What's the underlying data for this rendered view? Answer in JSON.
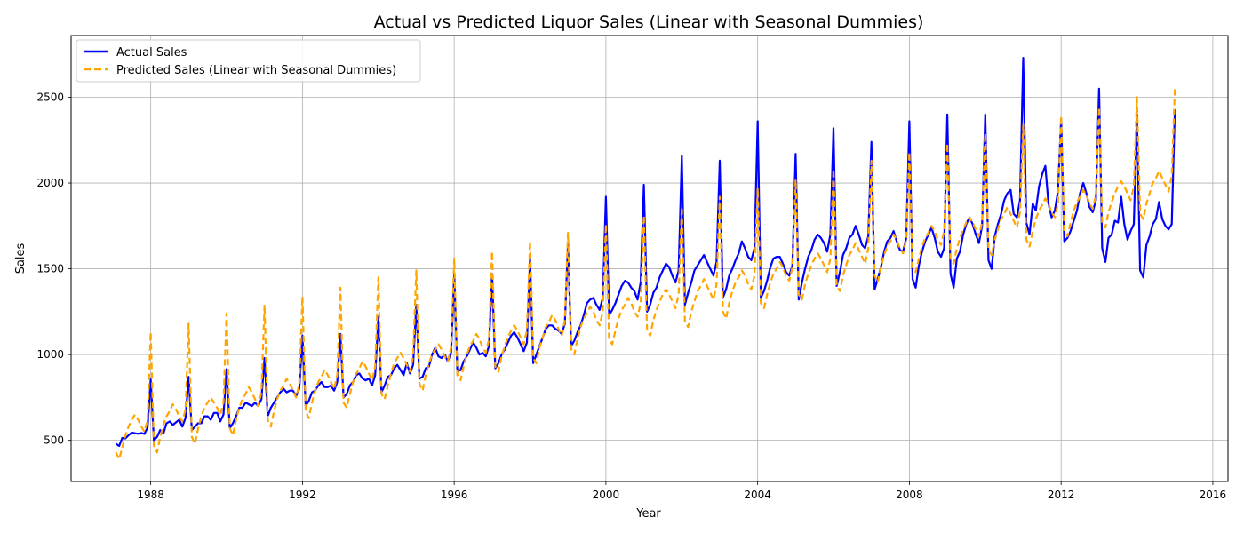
{
  "chart_data": {
    "type": "line",
    "title": "Actual vs Predicted Liquor Sales (Linear with Seasonal Dummies)",
    "xlabel": "Year",
    "ylabel": "Sales",
    "xlim": [
      1985.9,
      2016.4
    ],
    "ylim": [
      260,
      2860
    ],
    "xticks": [
      1988,
      1992,
      1996,
      2000,
      2004,
      2008,
      2012,
      2016
    ],
    "yticks": [
      500,
      1000,
      1500,
      2000,
      2500
    ],
    "grid": true,
    "legend_position": "top-left",
    "series": [
      {
        "name": "Actual Sales",
        "color": "#0000ff",
        "style": "solid",
        "annual": [
          {
            "year": 1987,
            "values": [
              480,
              467,
              514,
              511,
              530,
              545,
              541,
              538,
              543,
              537,
              575,
              855
            ]
          },
          {
            "year": 1988,
            "values": [
              500,
              520,
              560,
              540,
              600,
              610,
              590,
              605,
              620,
              580,
              630,
              870
            ]
          },
          {
            "year": 1989,
            "values": [
              560,
              580,
              600,
              600,
              640,
              640,
              620,
              660,
              660,
              610,
              650,
              915
            ]
          },
          {
            "year": 1990,
            "values": [
              570,
              600,
              640,
              690,
              690,
              720,
              710,
              700,
              720,
              700,
              740,
              980
            ]
          },
          {
            "year": 1991,
            "values": [
              640,
              690,
              720,
              750,
              780,
              800,
              780,
              790,
              790,
              760,
              800,
              1110
            ]
          },
          {
            "year": 1992,
            "values": [
              700,
              730,
              780,
              790,
              820,
              840,
              810,
              810,
              820,
              790,
              840,
              1120
            ]
          },
          {
            "year": 1993,
            "values": [
              750,
              770,
              820,
              840,
              880,
              890,
              860,
              850,
              860,
              820,
              880,
              1220
            ]
          },
          {
            "year": 1994,
            "values": [
              780,
              820,
              870,
              880,
              920,
              940,
              910,
              880,
              950,
              890,
              940,
              1290
            ]
          },
          {
            "year": 1995,
            "values": [
              860,
              870,
              920,
              930,
              1000,
              1040,
              990,
              980,
              1000,
              960,
              1010,
              1470
            ]
          },
          {
            "year": 1996,
            "values": [
              900,
              910,
              960,
              990,
              1030,
              1070,
              1040,
              1000,
              1010,
              990,
              1050,
              1470
            ]
          },
          {
            "year": 1997,
            "values": [
              920,
              950,
              1000,
              1030,
              1070,
              1110,
              1130,
              1100,
              1060,
              1020,
              1070,
              1560
            ]
          },
          {
            "year": 1998,
            "values": [
              950,
              1000,
              1050,
              1100,
              1150,
              1170,
              1170,
              1150,
              1140,
              1120,
              1180,
              1650
            ]
          },
          {
            "year": 1999,
            "values": [
              1050,
              1080,
              1130,
              1170,
              1230,
              1300,
              1320,
              1330,
              1290,
              1260,
              1330,
              1920
            ]
          },
          {
            "year": 2000,
            "values": [
              1230,
              1260,
              1300,
              1350,
              1400,
              1430,
              1420,
              1390,
              1370,
              1320,
              1420,
              1990
            ]
          },
          {
            "year": 2001,
            "values": [
              1250,
              1290,
              1360,
              1390,
              1450,
              1490,
              1530,
              1510,
              1460,
              1420,
              1490,
              2160
            ]
          },
          {
            "year": 2002,
            "values": [
              1290,
              1360,
              1420,
              1490,
              1520,
              1550,
              1580,
              1540,
              1500,
              1460,
              1540,
              2130
            ]
          },
          {
            "year": 2003,
            "values": [
              1330,
              1380,
              1460,
              1500,
              1550,
              1590,
              1660,
              1620,
              1570,
              1550,
              1620,
              2360
            ]
          },
          {
            "year": 2004,
            "values": [
              1330,
              1370,
              1430,
              1510,
              1560,
              1570,
              1570,
              1530,
              1480,
              1460,
              1520,
              2170
            ]
          },
          {
            "year": 2005,
            "values": [
              1320,
              1420,
              1500,
              1570,
              1610,
              1670,
              1700,
              1680,
              1650,
              1600,
              1700,
              2320
            ]
          },
          {
            "year": 2006,
            "values": [
              1400,
              1480,
              1580,
              1620,
              1680,
              1700,
              1750,
              1700,
              1640,
              1620,
              1690,
              2240
            ]
          },
          {
            "year": 2007,
            "values": [
              1380,
              1440,
              1510,
              1600,
              1660,
              1680,
              1720,
              1660,
              1610,
              1600,
              1680,
              2360
            ]
          },
          {
            "year": 2008,
            "values": [
              1440,
              1390,
              1520,
              1600,
              1660,
              1700,
              1740,
              1680,
              1600,
              1570,
              1620,
              2400
            ]
          },
          {
            "year": 2009,
            "values": [
              1470,
              1390,
              1560,
              1600,
              1700,
              1760,
              1800,
              1760,
              1700,
              1650,
              1750,
              2400
            ]
          },
          {
            "year": 2010,
            "values": [
              1550,
              1500,
              1690,
              1760,
              1820,
              1900,
              1940,
              1960,
              1820,
              1800,
              1900,
              2730
            ]
          },
          {
            "year": 2011,
            "values": [
              1770,
              1700,
              1880,
              1840,
              1980,
              2050,
              2100,
              1880,
              1800,
              1840,
              1950,
              2370
            ]
          },
          {
            "year": 2012,
            "values": [
              1660,
              1680,
              1720,
              1780,
              1840,
              1940,
              2000,
              1940,
              1860,
              1830,
              1900,
              2550
            ]
          },
          {
            "year": 2013,
            "values": [
              1620,
              1540,
              1680,
              1700,
              1780,
              1770,
              1920,
              1760,
              1670,
              1720,
              1760,
              2400
            ]
          },
          {
            "year": 2014,
            "values": [
              1490,
              1450,
              1640,
              1690,
              1760,
              1790,
              1890,
              1790,
              1750,
              1730,
              1760,
              2430
            ]
          }
        ]
      },
      {
        "name": "Predicted Sales (Linear with Seasonal Dummies)",
        "color": "#ffa500",
        "style": "dashed",
        "annual": [
          {
            "year": 1987,
            "values": [
              430,
              390,
              460,
              530,
              580,
              620,
              650,
              620,
              580,
              550,
              620,
              1130
            ]
          },
          {
            "year": 1988,
            "values": [
              470,
              430,
              520,
              590,
              640,
              670,
              710,
              680,
              640,
              610,
              680,
              1180
            ]
          },
          {
            "year": 1989,
            "values": [
              520,
              480,
              570,
              640,
              690,
              720,
              750,
              720,
              690,
              650,
              720,
              1240
            ]
          },
          {
            "year": 1990,
            "values": [
              570,
              530,
              620,
              690,
              740,
              770,
              810,
              780,
              740,
              700,
              780,
              1290
            ]
          },
          {
            "year": 1991,
            "values": [
              620,
              580,
              670,
              740,
              790,
              820,
              860,
              830,
              790,
              750,
              830,
              1340
            ]
          },
          {
            "year": 1992,
            "values": [
              670,
              630,
              720,
              790,
              840,
              870,
              910,
              880,
              840,
              800,
              880,
              1390
            ]
          },
          {
            "year": 1993,
            "values": [
              720,
              690,
              770,
              840,
              890,
              920,
              960,
              930,
              890,
              850,
              930,
              1450
            ]
          },
          {
            "year": 1994,
            "values": [
              770,
              740,
              820,
              890,
              950,
              980,
              1010,
              980,
              940,
              900,
              990,
              1490
            ]
          },
          {
            "year": 1995,
            "values": [
              830,
              790,
              880,
              950,
              1000,
              1030,
              1060,
              1030,
              990,
              960,
              1040,
              1560
            ]
          },
          {
            "year": 1996,
            "values": [
              880,
              850,
              930,
              1000,
              1050,
              1080,
              1120,
              1090,
              1040,
              1010,
              1090,
              1600
            ]
          },
          {
            "year": 1997,
            "values": [
              930,
              900,
              990,
              1050,
              1100,
              1140,
              1170,
              1140,
              1100,
              1060,
              1140,
              1660
            ]
          },
          {
            "year": 1998,
            "values": [
              980,
              950,
              1040,
              1100,
              1160,
              1190,
              1230,
              1200,
              1150,
              1110,
              1200,
              1710
            ]
          },
          {
            "year": 1999,
            "values": [
              1030,
              1000,
              1090,
              1160,
              1210,
              1240,
              1280,
              1250,
              1200,
              1170,
              1250,
              1760
            ]
          },
          {
            "year": 2000,
            "values": [
              1090,
              1060,
              1140,
              1210,
              1260,
              1290,
              1330,
              1300,
              1250,
              1220,
              1300,
              1810
            ]
          },
          {
            "year": 2001,
            "values": [
              1140,
              1110,
              1200,
              1260,
              1310,
              1350,
              1380,
              1350,
              1310,
              1270,
              1350,
              1860
            ]
          },
          {
            "year": 2002,
            "values": [
              1190,
              1160,
              1250,
              1310,
              1370,
              1400,
              1440,
              1400,
              1360,
              1320,
              1410,
              1920
            ]
          },
          {
            "year": 2003,
            "values": [
              1250,
              1210,
              1300,
              1370,
              1420,
              1450,
              1490,
              1460,
              1410,
              1380,
              1460,
              1970
            ]
          },
          {
            "year": 2004,
            "values": [
              1300,
              1270,
              1350,
              1420,
              1470,
              1500,
              1540,
              1510,
              1460,
              1430,
              1510,
              2020
            ]
          },
          {
            "year": 2005,
            "values": [
              1350,
              1320,
              1410,
              1470,
              1520,
              1560,
              1590,
              1560,
              1520,
              1480,
              1560,
              2080
            ]
          },
          {
            "year": 2006,
            "values": [
              1400,
              1370,
              1460,
              1520,
              1580,
              1610,
              1650,
              1610,
              1570,
              1530,
              1620,
              2130
            ]
          },
          {
            "year": 2007,
            "values": [
              1460,
              1420,
              1510,
              1580,
              1630,
              1660,
              1700,
              1670,
              1620,
              1590,
              1670,
              2180
            ]
          },
          {
            "year": 2008,
            "values": [
              1510,
              1480,
              1560,
              1630,
              1680,
              1710,
              1750,
              1720,
              1670,
              1640,
              1720,
              2230
            ]
          },
          {
            "year": 2009,
            "values": [
              1560,
              1530,
              1620,
              1680,
              1730,
              1770,
              1800,
              1770,
              1730,
              1690,
              1770,
              2290
            ]
          },
          {
            "year": 2010,
            "values": [
              1610,
              1580,
              1670,
              1730,
              1790,
              1820,
              1860,
              1820,
              1780,
              1740,
              1830,
              2340
            ]
          },
          {
            "year": 2011,
            "values": [
              1670,
              1630,
              1720,
              1790,
              1840,
              1870,
              1910,
              1880,
              1830,
              1800,
              1880,
              2390
            ]
          },
          {
            "year": 2012,
            "values": [
              1720,
              1690,
              1770,
              1840,
              1890,
              1920,
              1960,
              1930,
              1880,
              1850,
              1930,
              2440
            ]
          },
          {
            "year": 2013,
            "values": [
              1770,
              1740,
              1830,
              1890,
              1940,
              1980,
              2010,
              1980,
              1940,
              1900,
              1980,
              2500
            ]
          },
          {
            "year": 2014,
            "values": [
              1820,
              1790,
              1880,
              1940,
              2000,
              2030,
              2070,
              2030,
              1990,
              1950,
              2040,
              2550
            ]
          }
        ]
      }
    ]
  }
}
